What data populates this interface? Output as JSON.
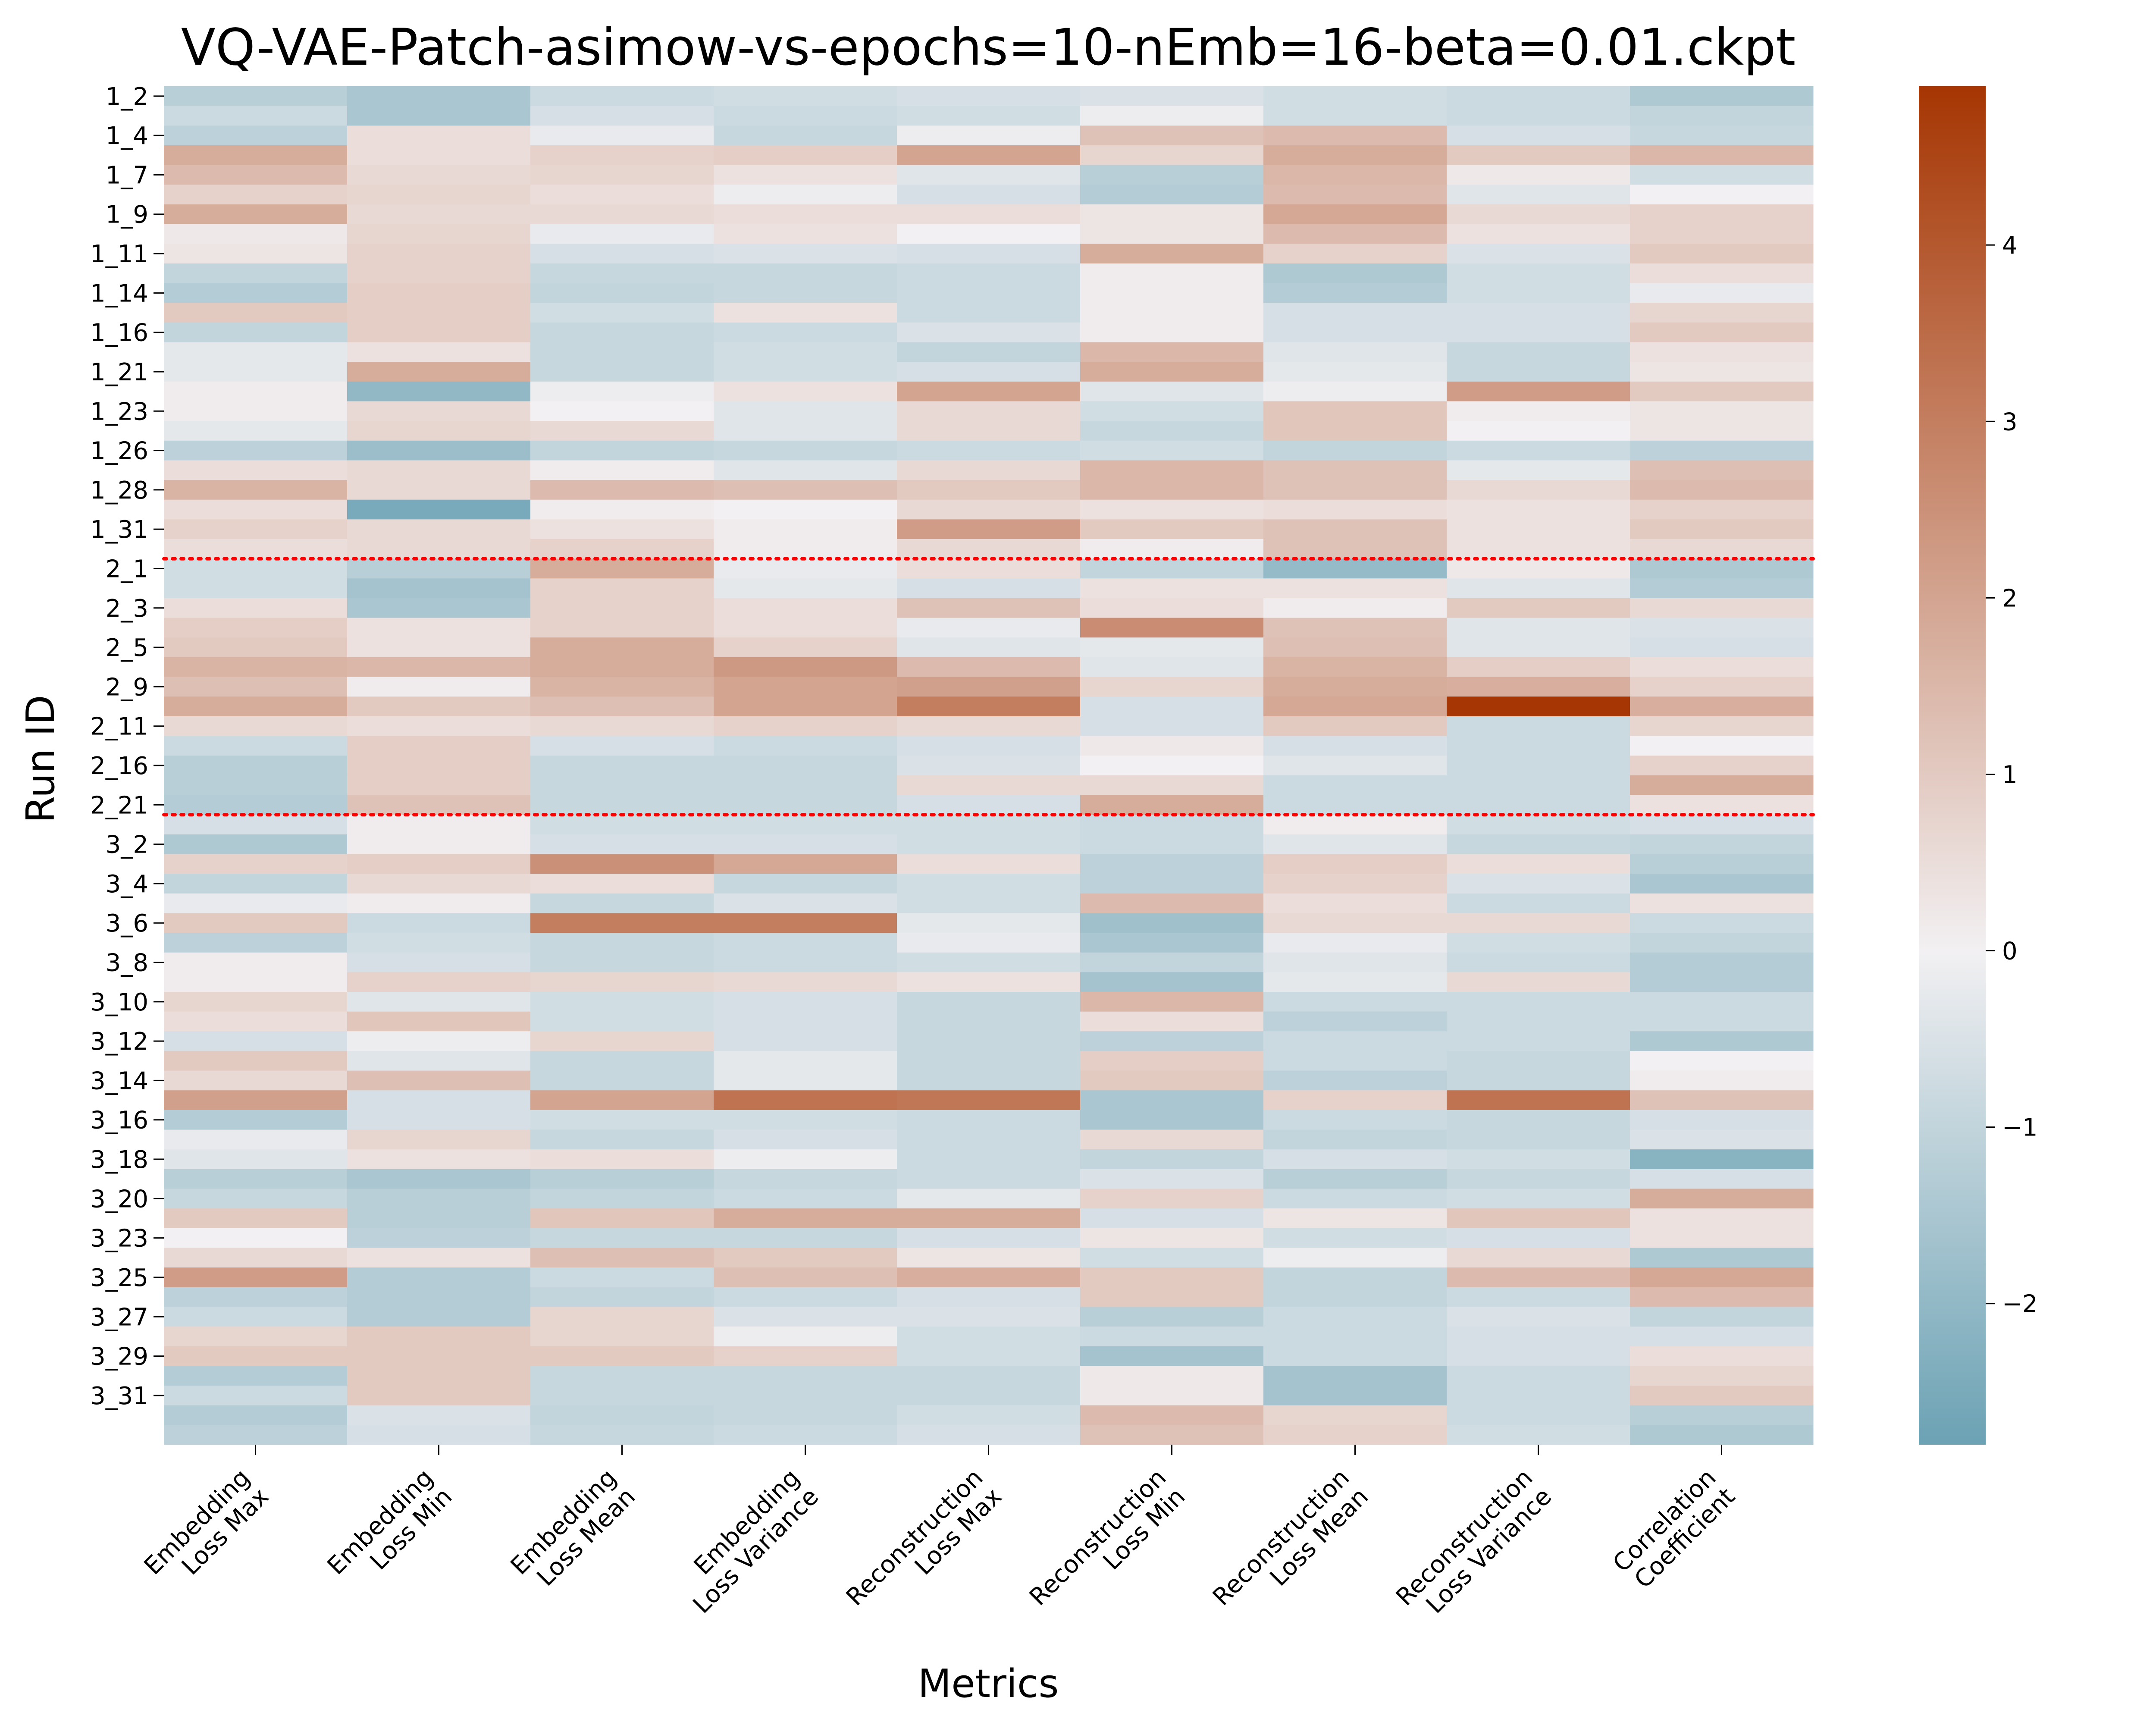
{
  "chart_data": {
    "type": "heatmap",
    "title": "VQ-VAE-Patch-asimow-vs-epochs=10-nEmb=16-beta=0.01.ckpt",
    "xlabel": "Metrics",
    "ylabel": "Run ID",
    "columns": [
      [
        "Embedding",
        "Loss Max"
      ],
      [
        "Embedding",
        "Loss Min"
      ],
      [
        "Embedding",
        "Loss Mean"
      ],
      [
        "Embedding",
        "Loss Variance"
      ],
      [
        "Reconstruction",
        "Loss Max"
      ],
      [
        "Reconstruction",
        "Loss Min"
      ],
      [
        "Reconstruction",
        "Loss Mean"
      ],
      [
        "Reconstruction",
        "Loss Variance"
      ],
      [
        "Correlation",
        "Coefficient"
      ]
    ],
    "tick_labels": [
      "1_2",
      "1_4",
      "1_7",
      "1_9",
      "1_11",
      "1_14",
      "1_16",
      "1_21",
      "1_23",
      "1_26",
      "1_28",
      "1_31",
      "2_1",
      "2_3",
      "2_5",
      "2_9",
      "2_11",
      "2_16",
      "2_21",
      "3_2",
      "3_4",
      "3_6",
      "3_8",
      "3_10",
      "3_12",
      "3_14",
      "3_16",
      "3_18",
      "3_20",
      "3_23",
      "3_25",
      "3_27",
      "3_29",
      "3_31"
    ],
    "row_count": 69,
    "tick_rows": [
      0,
      2,
      4,
      6,
      8,
      10,
      12,
      14,
      16,
      18,
      20,
      22,
      24,
      26,
      28,
      30,
      32,
      34,
      36,
      38,
      40,
      42,
      44,
      46,
      48,
      50,
      52,
      54,
      56,
      58,
      60,
      62,
      64,
      66
    ],
    "group_separators": [
      24,
      37
    ],
    "colorbar": {
      "min": -2.8,
      "max": 4.9,
      "ticks": [
        -2,
        -1,
        0,
        1,
        2,
        3,
        4
      ]
    },
    "colors": {
      "negative": "#6ba2b4",
      "neutral": "#f2f0f2",
      "positive": "#a63603",
      "separator": "#ff0000"
    },
    "values": [
      [
        -1.2,
        -1.5,
        -0.8,
        -0.7,
        -0.6,
        -0.5,
        -0.7,
        -0.8,
        -1.4
      ],
      [
        -0.8,
        -1.5,
        -0.6,
        -0.8,
        -0.7,
        -0.1,
        -0.7,
        -0.8,
        -1.0
      ],
      [
        -1.1,
        0.5,
        -0.2,
        -0.9,
        -0.1,
        1.2,
        1.4,
        -0.6,
        -0.9
      ],
      [
        1.8,
        0.5,
        0.8,
        0.9,
        2.0,
        0.7,
        1.8,
        1.0,
        1.5
      ],
      [
        1.4,
        0.6,
        0.7,
        0.4,
        -0.4,
        -1.2,
        1.5,
        0.2,
        -0.7
      ],
      [
        0.8,
        0.7,
        0.5,
        -0.1,
        -0.6,
        -1.3,
        1.4,
        -0.4,
        0.0
      ],
      [
        1.8,
        0.6,
        0.6,
        0.5,
        0.5,
        0.3,
        1.9,
        0.6,
        0.8
      ],
      [
        0.2,
        0.7,
        -0.2,
        0.4,
        0.0,
        0.3,
        1.4,
        0.4,
        0.8
      ],
      [
        0.3,
        0.8,
        -0.6,
        -0.5,
        -0.6,
        1.8,
        0.8,
        -0.5,
        1.0
      ],
      [
        -1.0,
        0.8,
        -0.9,
        -0.9,
        -0.8,
        0.1,
        -1.4,
        -0.7,
        0.5
      ],
      [
        -1.3,
        0.9,
        -1.0,
        -0.9,
        -0.8,
        0.1,
        -1.3,
        -0.7,
        -0.2
      ],
      [
        1.0,
        0.9,
        -0.7,
        0.4,
        -0.8,
        0.1,
        -0.6,
        -0.6,
        0.7
      ],
      [
        -1.0,
        0.9,
        -0.9,
        -0.8,
        -0.5,
        0.1,
        -0.6,
        -0.6,
        1.0
      ],
      [
        -0.3,
        0.4,
        -0.9,
        -0.7,
        -1.0,
        1.5,
        -0.4,
        -0.9,
        0.4
      ],
      [
        -0.3,
        1.8,
        -0.9,
        -0.7,
        -0.6,
        1.8,
        -0.3,
        -0.9,
        0.3
      ],
      [
        0.1,
        -2.0,
        -0.1,
        0.4,
        2.0,
        -0.4,
        -0.1,
        2.2,
        1.0
      ],
      [
        0.1,
        0.6,
        0.0,
        -0.4,
        0.6,
        -0.7,
        1.1,
        0.1,
        0.3
      ],
      [
        -0.3,
        0.7,
        0.6,
        -0.4,
        0.6,
        -0.9,
        1.1,
        0.0,
        0.3
      ],
      [
        -1.1,
        -1.8,
        -1.0,
        -0.9,
        -0.8,
        -0.7,
        -1.0,
        -0.8,
        -1.1
      ],
      [
        0.5,
        0.6,
        0.1,
        -0.4,
        0.6,
        1.5,
        1.2,
        -0.3,
        1.3
      ],
      [
        1.6,
        0.6,
        1.4,
        1.3,
        1.0,
        1.5,
        1.2,
        0.6,
        1.4
      ],
      [
        0.5,
        -2.5,
        0.1,
        0.0,
        0.6,
        0.4,
        0.5,
        0.4,
        0.8
      ],
      [
        0.8,
        0.6,
        0.4,
        0.1,
        2.2,
        1.0,
        1.2,
        0.4,
        1.0
      ],
      [
        0.5,
        0.6,
        0.8,
        0.1,
        0.6,
        0.1,
        1.2,
        0.4,
        0.6
      ],
      [
        -0.7,
        -1.2,
        1.8,
        -0.2,
        0.5,
        -1.0,
        -1.9,
        0.2,
        -1.4
      ],
      [
        -0.7,
        -1.6,
        0.8,
        -0.3,
        -0.6,
        0.4,
        0.4,
        -0.4,
        -1.3
      ],
      [
        0.5,
        -1.5,
        0.8,
        0.5,
        1.2,
        0.5,
        0.1,
        1.0,
        0.6
      ],
      [
        0.9,
        0.4,
        0.8,
        0.5,
        -0.2,
        2.6,
        1.2,
        -0.4,
        -0.5
      ],
      [
        1.0,
        0.4,
        1.8,
        0.8,
        -0.4,
        -0.3,
        1.3,
        -0.4,
        -0.6
      ],
      [
        1.6,
        1.5,
        1.8,
        2.3,
        1.4,
        -0.4,
        1.6,
        0.9,
        0.5
      ],
      [
        1.3,
        0.1,
        1.6,
        2.0,
        2.1,
        0.7,
        1.8,
        1.7,
        0.8
      ],
      [
        1.8,
        1.0,
        1.3,
        2.0,
        3.0,
        -0.6,
        1.9,
        4.9,
        1.7
      ],
      [
        0.6,
        0.5,
        0.6,
        0.8,
        0.6,
        -0.6,
        1.0,
        -0.8,
        0.7
      ],
      [
        -0.8,
        0.9,
        -0.6,
        -0.8,
        -0.6,
        0.2,
        -0.6,
        -0.8,
        0.0
      ],
      [
        -1.2,
        0.9,
        -0.9,
        -0.9,
        -0.5,
        0.0,
        -0.4,
        -0.8,
        0.8
      ],
      [
        -1.2,
        0.9,
        -0.9,
        -0.9,
        0.6,
        0.6,
        -0.8,
        -0.8,
        1.8
      ],
      [
        -1.3,
        1.2,
        -0.9,
        -0.9,
        -0.6,
        1.8,
        -0.8,
        -0.8,
        0.4
      ],
      [
        -0.6,
        0.1,
        -0.7,
        -0.7,
        -0.7,
        -0.8,
        0.1,
        -0.7,
        -0.6
      ],
      [
        -1.4,
        0.1,
        -0.6,
        -0.6,
        -0.7,
        -0.8,
        -0.4,
        -0.9,
        -1.0
      ],
      [
        0.8,
        0.9,
        2.5,
        1.9,
        0.5,
        -1.1,
        0.9,
        0.5,
        -1.2
      ],
      [
        -1.0,
        0.6,
        0.5,
        -0.9,
        -0.7,
        -1.1,
        0.8,
        -0.5,
        -1.5
      ],
      [
        -0.2,
        0.1,
        -0.9,
        -0.5,
        -0.7,
        1.4,
        0.5,
        -0.8,
        0.4
      ],
      [
        1.0,
        -0.8,
        3.0,
        3.0,
        -0.3,
        -1.7,
        0.6,
        0.6,
        -0.8
      ],
      [
        -1.1,
        -0.7,
        -0.9,
        -0.8,
        -0.2,
        -1.5,
        -0.2,
        -0.7,
        -1.0
      ],
      [
        0.1,
        -0.6,
        -0.9,
        -0.8,
        -0.7,
        -1.0,
        -0.4,
        -0.8,
        -1.3
      ],
      [
        0.1,
        0.8,
        0.7,
        0.6,
        0.4,
        -1.6,
        -0.3,
        0.6,
        -1.3
      ],
      [
        0.7,
        -0.4,
        -0.7,
        -0.6,
        -0.9,
        1.5,
        -0.8,
        -0.8,
        -0.8
      ],
      [
        0.5,
        1.1,
        -0.7,
        -0.6,
        -0.9,
        0.5,
        -1.1,
        -0.8,
        -0.8
      ],
      [
        -0.6,
        -0.1,
        0.7,
        -0.6,
        -0.9,
        -1.1,
        -0.8,
        -0.8,
        -1.4
      ],
      [
        1.0,
        -0.4,
        -0.9,
        -0.3,
        -0.9,
        0.9,
        -0.8,
        -0.9,
        0.0
      ],
      [
        0.6,
        1.3,
        -0.9,
        -0.3,
        -0.9,
        1.0,
        -1.1,
        -0.9,
        0.1
      ],
      [
        2.1,
        -0.6,
        2.0,
        3.3,
        3.2,
        -1.5,
        0.8,
        3.3,
        1.2
      ],
      [
        -1.3,
        -0.6,
        -0.7,
        -0.7,
        -0.8,
        -1.5,
        -0.8,
        -0.9,
        -0.6
      ],
      [
        -0.2,
        0.7,
        -0.9,
        -0.6,
        -0.8,
        0.6,
        -1.0,
        -0.9,
        -0.5
      ],
      [
        -0.4,
        0.4,
        0.5,
        -0.1,
        -0.8,
        -1.0,
        -0.6,
        -0.7,
        -2.2
      ],
      [
        -1.2,
        -1.5,
        -1.2,
        -0.9,
        -0.8,
        -0.5,
        -1.2,
        -0.9,
        -0.6
      ],
      [
        -0.9,
        -1.2,
        -1.0,
        -0.8,
        -0.3,
        0.8,
        -0.8,
        -0.7,
        1.8
      ],
      [
        1.0,
        -1.2,
        1.1,
        1.8,
        1.8,
        -0.6,
        0.3,
        1.1,
        0.4
      ],
      [
        0.0,
        -1.1,
        -0.9,
        -0.9,
        -0.6,
        0.3,
        -0.7,
        -0.6,
        0.4
      ],
      [
        0.6,
        0.4,
        1.3,
        1.0,
        0.3,
        -0.7,
        -0.1,
        0.6,
        -1.4
      ],
      [
        2.2,
        -1.3,
        -0.8,
        1.3,
        1.7,
        1.0,
        -1.0,
        1.4,
        1.9
      ],
      [
        -1.1,
        -1.3,
        -1.0,
        -0.8,
        -0.6,
        1.0,
        -1.0,
        -0.8,
        1.4
      ],
      [
        -0.8,
        -1.3,
        0.7,
        -0.5,
        -0.5,
        -1.2,
        -0.8,
        -0.5,
        -1.0
      ],
      [
        0.7,
        1.0,
        0.7,
        -0.1,
        -0.7,
        -0.8,
        -0.8,
        -0.6,
        -0.6
      ],
      [
        1.0,
        1.0,
        1.0,
        0.8,
        -0.7,
        -1.6,
        -0.8,
        -0.6,
        0.5
      ],
      [
        -1.3,
        1.0,
        -0.9,
        -0.9,
        -0.9,
        0.2,
        -1.6,
        -0.8,
        0.7
      ],
      [
        -0.8,
        1.0,
        -0.9,
        -0.9,
        -0.9,
        0.2,
        -1.6,
        -0.8,
        1.0
      ],
      [
        -1.3,
        -0.5,
        -1.0,
        -0.9,
        -0.7,
        1.4,
        0.7,
        -0.8,
        -1.2
      ],
      [
        -1.1,
        -0.6,
        -0.9,
        -0.8,
        -0.6,
        1.2,
        0.8,
        -0.7,
        -1.4
      ]
    ]
  }
}
